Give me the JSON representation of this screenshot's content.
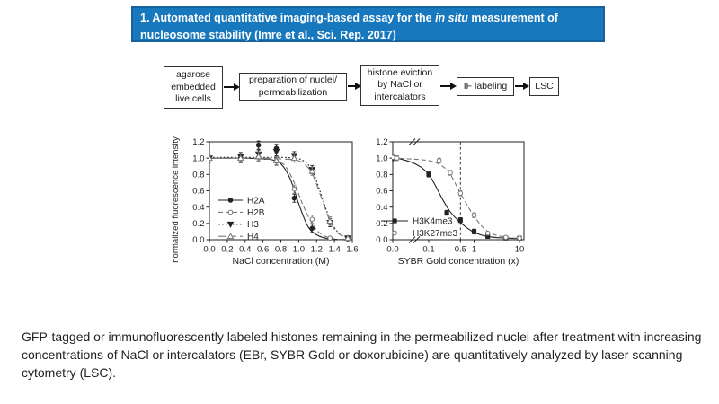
{
  "slide": {
    "title": {
      "line1_pre": "1. Automated quantitative imaging-based assay for the ",
      "line1_italic": "in situ",
      "line1_post": " measurement of",
      "line2": "nucleosome stability (Imre et al., Sci. Rep. 2017)"
    },
    "caption": "GFP-tagged or immunofluorescently labeled histones remaining in the permeabilized nuclei after treatment with increasing\nconcentrations of NaCl or intercalators (EBr, SYBR Gold or doxorubicine) are quantitatively analyzed by laser scanning\ncytometry (LSC)."
  },
  "flowchart": {
    "steps": [
      {
        "label": "agarose\nembedded\nlive cells"
      },
      {
        "label": "preparation of nuclei/\npermeabilization"
      },
      {
        "label": "histone eviction\nby NaCl or\nintercalators"
      },
      {
        "label": "IF labeling"
      },
      {
        "label": "LSC"
      }
    ]
  },
  "colors": {
    "banner_bg": "#1878BE",
    "banner_border": "#13639E",
    "ink": "#222222",
    "light_series": "#777777"
  },
  "chart_data": [
    {
      "type": "line",
      "title": "",
      "xlabel": "NaCl concentration (M)",
      "ylabel": "normalized fluorescence intensity",
      "xlim": [
        0,
        1.6
      ],
      "ylim": [
        0,
        1.2
      ],
      "xscale": "linear",
      "grid": false,
      "legend_position": "lower left",
      "xticks": [
        {
          "v": 0.0,
          "l": "0.0"
        },
        {
          "v": 0.2,
          "l": "0.2"
        },
        {
          "v": 0.4,
          "l": "0.4"
        },
        {
          "v": 0.6,
          "l": "0.6"
        },
        {
          "v": 0.8,
          "l": "0.8"
        },
        {
          "v": 1.0,
          "l": "1.0"
        },
        {
          "v": 1.2,
          "l": "1.2"
        },
        {
          "v": 1.4,
          "l": "1.4"
        },
        {
          "v": 1.6,
          "l": "1.6"
        }
      ],
      "yticks": [
        {
          "v": 0.0,
          "l": "0.0"
        },
        {
          "v": 0.2,
          "l": "0.2"
        },
        {
          "v": 0.4,
          "l": "0.4"
        },
        {
          "v": 0.6,
          "l": "0.6"
        },
        {
          "v": 0.8,
          "l": "0.8"
        },
        {
          "v": 1.0,
          "l": "1.0"
        },
        {
          "v": 1.2,
          "l": "1.2"
        }
      ],
      "series": [
        {
          "name": "H2A",
          "marker": "filled-circle",
          "line": "solid",
          "color": "#222222",
          "error": 0.05,
          "points": [
            [
              0,
              1.0
            ],
            [
              0.35,
              1.0
            ],
            [
              0.55,
              1.16
            ],
            [
              0.75,
              1.12
            ],
            [
              0.95,
              0.51
            ],
            [
              1.15,
              0.14
            ],
            [
              1.35,
              0.02
            ],
            [
              1.55,
              0.01
            ]
          ],
          "curve": [
            [
              0,
              1.0
            ],
            [
              0.4,
              1.0
            ],
            [
              0.6,
              0.99
            ],
            [
              0.7,
              0.98
            ],
            [
              0.8,
              0.93
            ],
            [
              0.9,
              0.76
            ],
            [
              1.0,
              0.44
            ],
            [
              1.1,
              0.17
            ],
            [
              1.2,
              0.06
            ],
            [
              1.35,
              0.01
            ],
            [
              1.6,
              0.0
            ]
          ]
        },
        {
          "name": "H2B",
          "marker": "open-circle",
          "line": "dash",
          "color": "#777777",
          "error": 0.05,
          "points": [
            [
              0,
              1.0
            ],
            [
              0.35,
              0.99
            ],
            [
              0.55,
              1.01
            ],
            [
              0.75,
              0.96
            ],
            [
              0.95,
              0.62
            ],
            [
              1.15,
              0.25
            ],
            [
              1.35,
              0.02
            ],
            [
              1.55,
              0.01
            ]
          ],
          "curve": [
            [
              0,
              1.0
            ],
            [
              0.45,
              1.0
            ],
            [
              0.65,
              0.99
            ],
            [
              0.75,
              0.97
            ],
            [
              0.85,
              0.9
            ],
            [
              0.95,
              0.7
            ],
            [
              1.05,
              0.42
            ],
            [
              1.15,
              0.2
            ],
            [
              1.25,
              0.07
            ],
            [
              1.4,
              0.01
            ],
            [
              1.6,
              0.0
            ]
          ]
        },
        {
          "name": "H3",
          "marker": "filled-triangle-down",
          "line": "dotted",
          "color": "#222222",
          "error": 0.05,
          "points": [
            [
              0,
              1.0
            ],
            [
              0.35,
              1.02
            ],
            [
              0.55,
              1.05
            ],
            [
              0.75,
              1.08
            ],
            [
              0.95,
              1.03
            ],
            [
              1.15,
              0.86
            ],
            [
              1.35,
              0.21
            ],
            [
              1.55,
              0.02
            ]
          ],
          "curve": [
            [
              0,
              1.01
            ],
            [
              0.6,
              1.01
            ],
            [
              0.8,
              1.01
            ],
            [
              0.95,
              1.0
            ],
            [
              1.05,
              0.97
            ],
            [
              1.15,
              0.85
            ],
            [
              1.25,
              0.56
            ],
            [
              1.35,
              0.25
            ],
            [
              1.45,
              0.08
            ],
            [
              1.55,
              0.02
            ],
            [
              1.6,
              0.01
            ]
          ]
        },
        {
          "name": "H4",
          "marker": "open-triangle-up",
          "line": "dashdot",
          "color": "#777777",
          "error": 0.05,
          "points": [
            [
              0,
              1.0
            ],
            [
              0.35,
              1.0
            ],
            [
              0.55,
              1.02
            ],
            [
              0.75,
              0.97
            ],
            [
              0.95,
              1.0
            ],
            [
              1.15,
              0.84
            ],
            [
              1.35,
              0.23
            ],
            [
              1.55,
              0.02
            ]
          ],
          "curve": [
            [
              0,
              1.0
            ],
            [
              0.6,
              1.0
            ],
            [
              0.8,
              0.99
            ],
            [
              0.95,
              0.98
            ],
            [
              1.05,
              0.94
            ],
            [
              1.15,
              0.81
            ],
            [
              1.25,
              0.53
            ],
            [
              1.35,
              0.23
            ],
            [
              1.45,
              0.07
            ],
            [
              1.6,
              0.01
            ]
          ]
        }
      ]
    },
    {
      "type": "line",
      "title": "",
      "xlabel": "SYBR Gold concentration (x)",
      "ylabel": "",
      "ylim": [
        0,
        1.2
      ],
      "xscale": "log-with-zero-break",
      "grid": false,
      "reference_line_x": 0.5,
      "legend_position": "lower left",
      "xticks": [
        {
          "v": 0,
          "l": "0.0"
        },
        {
          "v": 0.1,
          "l": "0.1"
        },
        {
          "v": 0.5,
          "l": "0.5"
        },
        {
          "v": 1,
          "l": "1"
        },
        {
          "v": 10,
          "l": "10"
        }
      ],
      "yticks": [
        {
          "v": 0.0,
          "l": "0.0"
        },
        {
          "v": 0.2,
          "l": "0.2"
        },
        {
          "v": 0.4,
          "l": "0.4"
        },
        {
          "v": 0.6,
          "l": "0.6"
        },
        {
          "v": 0.8,
          "l": "0.8"
        },
        {
          "v": 1.0,
          "l": "1.0"
        },
        {
          "v": 1.2,
          "l": "1.2"
        }
      ],
      "series": [
        {
          "name": "H3K4me3",
          "marker": "filled-square",
          "line": "solid",
          "color": "#222222",
          "error": 0.03,
          "points": [
            [
              0,
              1.0
            ],
            [
              0.1,
              0.8
            ],
            [
              0.25,
              0.33
            ],
            [
              0.5,
              0.24
            ],
            [
              1,
              0.1
            ],
            [
              2,
              0.04
            ],
            [
              5,
              0.02
            ],
            [
              10,
              0.02
            ]
          ],
          "curve": [
            [
              0,
              1.0
            ],
            [
              0.02,
              1.0
            ],
            [
              0.05,
              0.93
            ],
            [
              0.1,
              0.8
            ],
            [
              0.2,
              0.5
            ],
            [
              0.3,
              0.34
            ],
            [
              0.5,
              0.21
            ],
            [
              1,
              0.09
            ],
            [
              2,
              0.04
            ],
            [
              5,
              0.02
            ],
            [
              10,
              0.015
            ]
          ]
        },
        {
          "name": "H3K27me3",
          "marker": "open-circle",
          "line": "dash",
          "color": "#777777",
          "error": 0.03,
          "points": [
            [
              0,
              1.01
            ],
            [
              0.02,
              1.0
            ],
            [
              0.17,
              0.97
            ],
            [
              0.3,
              0.82
            ],
            [
              0.5,
              0.57
            ],
            [
              1,
              0.3
            ],
            [
              2,
              0.08
            ],
            [
              5,
              0.03
            ],
            [
              10,
              0.02
            ]
          ],
          "curve": [
            [
              0,
              1.01
            ],
            [
              0.02,
              1.0
            ],
            [
              0.1,
              0.97
            ],
            [
              0.2,
              0.9
            ],
            [
              0.3,
              0.8
            ],
            [
              0.5,
              0.57
            ],
            [
              1,
              0.29
            ],
            [
              2,
              0.1
            ],
            [
              5,
              0.03
            ],
            [
              10,
              0.02
            ]
          ]
        }
      ]
    }
  ]
}
